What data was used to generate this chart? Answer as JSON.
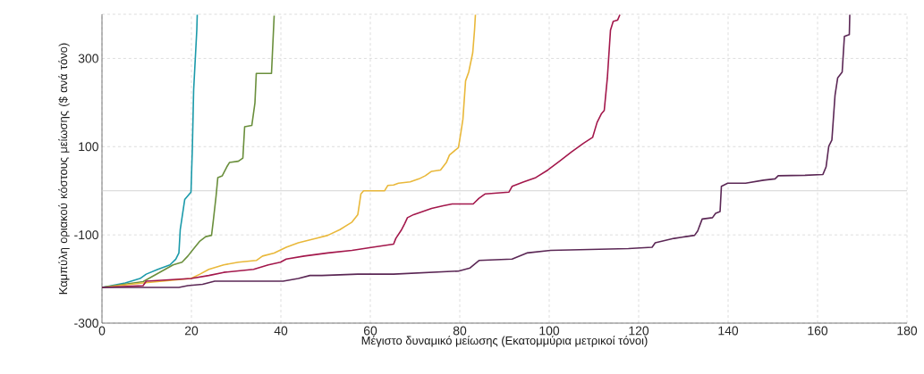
{
  "chart_data": {
    "type": "line",
    "xlabel": "Μέγιστο δυναμικό μείωσης (Εκατομμύρια μετρικοί τόνοι)",
    "ylabel": "Καμπύλη οριακού κόστους μείωσης ($ ανά τόνο)",
    "xlim": [
      0,
      180
    ],
    "ylim": [
      -300,
      400
    ],
    "xticks": [
      0,
      20,
      40,
      60,
      80,
      100,
      120,
      140,
      160,
      180
    ],
    "yticks": [
      -300,
      -100,
      100,
      300,
      {
        "value": 400,
        "label": null
      }
    ],
    "grid": true,
    "line_style": "solid",
    "marker": "none",
    "ref_lines": [
      {
        "axis": "y",
        "value": 0,
        "color": "#c8c8c8",
        "line_style": "solid"
      }
    ],
    "series": [
      {
        "color": "#1b9aaa",
        "x": [
          0,
          5.2,
          8.5,
          9.9,
          12.5,
          15.2,
          16.5,
          17.2,
          17.5,
          18.5,
          19.9,
          20.2,
          20.5,
          21.2,
          21.3
        ],
        "values": [
          -219,
          -209,
          -199,
          -189,
          -178,
          -168,
          -155,
          -141,
          -88,
          -20,
          -3,
          94,
          229,
          364,
          399
        ]
      },
      {
        "color": "#6a8f3c",
        "x": [
          0,
          9.2,
          15.9,
          17.9,
          19.2,
          20.2,
          21.9,
          23.2,
          24.5,
          24.9,
          25.5,
          25.9,
          26.9,
          27.9,
          28.5,
          30.5,
          31.5,
          31.9,
          33.5,
          34.2,
          34.5,
          37.9,
          38.5
        ],
        "values": [
          -219,
          -206,
          -168,
          -162,
          -148,
          -135,
          -114,
          -104,
          -101,
          -67,
          -13,
          30,
          34,
          54,
          64,
          67,
          74,
          145,
          148,
          199,
          266,
          266,
          397
        ]
      },
      {
        "color": "#e9b83a",
        "x": [
          0,
          9.2,
          19.9,
          21.9,
          23.9,
          27.2,
          30.5,
          34.5,
          35.9,
          38.5,
          41.2,
          43.9,
          47.9,
          50.5,
          53.2,
          55.9,
          57.2,
          57.9,
          58.5,
          63.2,
          63.9,
          65.2,
          66.3,
          68.9,
          70.9,
          72.3,
          73.7,
          75.7,
          77,
          77.7,
          79.7,
          80.3,
          80.7,
          81.3,
          82,
          82.9,
          83.3,
          83.5
        ],
        "values": [
          -219,
          -209,
          -199,
          -189,
          -178,
          -168,
          -162,
          -158,
          -148,
          -141,
          -128,
          -118,
          -108,
          -101,
          -88,
          -71,
          -54,
          -7,
          0,
          0,
          12,
          13,
          17,
          20,
          27,
          34,
          44,
          47,
          64,
          81,
          98,
          135,
          162,
          249,
          269,
          313,
          364,
          399
        ]
      },
      {
        "color": "#a3174b",
        "x": [
          0,
          9.2,
          9.9,
          19.9,
          23.9,
          27.2,
          33.9,
          37.2,
          39.9,
          41.2,
          45.2,
          50.5,
          55.9,
          60.5,
          65.2,
          65.7,
          67,
          67.7,
          68.3,
          69.7,
          71.7,
          73.7,
          76.3,
          78.3,
          83,
          84.3,
          85.7,
          91,
          91.7,
          94.3,
          97,
          99.7,
          102.3,
          105,
          107.7,
          109.7,
          110.7,
          111.7,
          112.3,
          113,
          113.7,
          114.3,
          115.3,
          115.8
        ],
        "values": [
          -219,
          -215,
          -205,
          -199,
          -192,
          -185,
          -178,
          -168,
          -162,
          -155,
          -148,
          -141,
          -135,
          -128,
          -121,
          -108,
          -88,
          -74,
          -61,
          -54,
          -47,
          -40,
          -34,
          -30,
          -30,
          -17,
          -7,
          -3,
          10,
          20,
          30,
          47,
          67,
          88,
          108,
          121,
          155,
          175,
          182,
          256,
          364,
          384,
          387,
          399
        ]
      },
      {
        "color": "#5b2755",
        "x": [
          0,
          17.2,
          19.2,
          22.5,
          25.2,
          40.5,
          43.9,
          46.5,
          49.2,
          57.2,
          65.2,
          79.7,
          82.3,
          84.3,
          91.7,
          95,
          100.3,
          117.7,
          123,
          123.7,
          127.9,
          130.5,
          132.5,
          133.2,
          134.2,
          136.5,
          137.2,
          138.2,
          138.5,
          139.9,
          143.9,
          147.9,
          150.5,
          151.2,
          157.2,
          161.2,
          161.9,
          162.5,
          163.2,
          163.9,
          164.5,
          165.5,
          166,
          167.1,
          167.2
        ],
        "values": [
          -219,
          -219,
          -215,
          -212,
          -205,
          -205,
          -199,
          -192,
          -192,
          -189,
          -189,
          -182,
          -175,
          -158,
          -155,
          -141,
          -135,
          -131,
          -128,
          -118,
          -108,
          -104,
          -101,
          -91,
          -64,
          -61,
          -51,
          -47,
          10,
          17,
          17,
          24,
          27,
          34,
          35,
          37,
          54,
          101,
          115,
          216,
          256,
          269,
          350,
          354,
          399
        ]
      }
    ]
  }
}
